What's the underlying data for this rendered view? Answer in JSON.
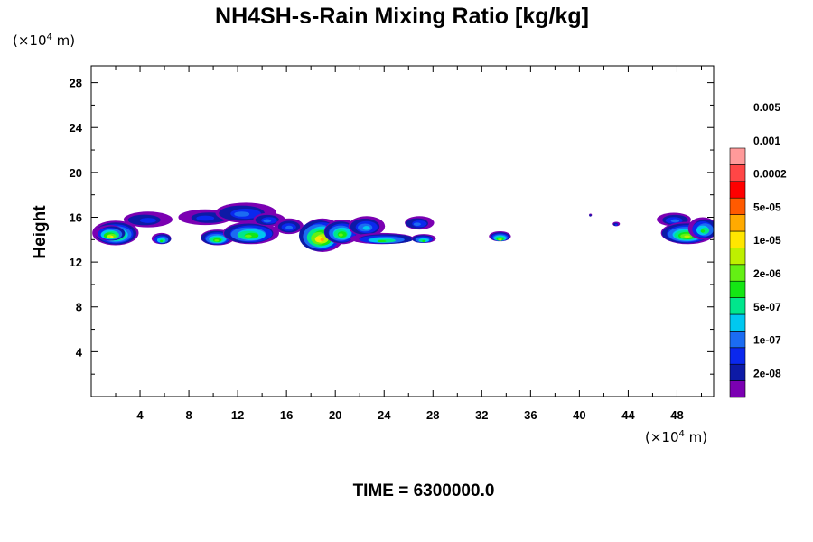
{
  "chart_data": {
    "type": "heatmap",
    "title": "NH4SH-s-Rain Mixing Ratio [kg/kg]",
    "xlabel": "",
    "ylabel": "Height",
    "x_unit_prefix": "(×10",
    "x_unit_exp": "4",
    "x_unit_suffix": " m)",
    "y_unit_prefix": "(×10",
    "y_unit_exp": "4",
    "y_unit_suffix": " m)",
    "xlim": [
      0,
      51
    ],
    "ylim": [
      0,
      29.5
    ],
    "x_ticks": [
      4,
      8,
      12,
      16,
      20,
      24,
      28,
      32,
      36,
      40,
      44,
      48
    ],
    "y_ticks": [
      4,
      8,
      12,
      16,
      20,
      24,
      28
    ],
    "x_minor_step": 2,
    "y_minor_step": 2,
    "grid": false,
    "colorbar": {
      "levels": [
        "2e-08",
        "1e-07",
        "5e-07",
        "2e-06",
        "1e-05",
        "5e-05",
        "0.0002",
        "0.001",
        "0.005"
      ],
      "colors": [
        "#7b00b2",
        "#0d1aa6",
        "#0a28ee",
        "#1b6cf2",
        "#00c8f0",
        "#00e68c",
        "#14e614",
        "#64f014",
        "#bef000",
        "#ffe600",
        "#ffaa00",
        "#ff5a00",
        "#ff0000",
        "#ff4646",
        "#ff9a9a"
      ]
    },
    "fields": [
      {
        "x": 2.0,
        "y": 14.6,
        "rx": 1.9,
        "ry": 1.1,
        "peak": 8
      },
      {
        "x": 1.6,
        "y": 14.6,
        "rx": 1.2,
        "ry": 0.7,
        "peak": 9
      },
      {
        "x": 4.5,
        "y": 15.8,
        "rx": 2.0,
        "ry": 0.7,
        "peak": 2
      },
      {
        "x": 5.8,
        "y": 14.1,
        "rx": 0.8,
        "ry": 0.5,
        "peak": 6
      },
      {
        "x": 9.5,
        "y": 16.0,
        "rx": 2.2,
        "ry": 0.7,
        "peak": 2
      },
      {
        "x": 10.3,
        "y": 14.2,
        "rx": 1.4,
        "ry": 0.7,
        "peak": 7
      },
      {
        "x": 13.0,
        "y": 14.6,
        "rx": 2.3,
        "ry": 1.0,
        "peak": 7
      },
      {
        "x": 12.5,
        "y": 16.4,
        "rx": 2.5,
        "ry": 0.9,
        "peak": 3
      },
      {
        "x": 14.5,
        "y": 15.8,
        "rx": 1.3,
        "ry": 0.6,
        "peak": 3
      },
      {
        "x": 16.2,
        "y": 15.2,
        "rx": 1.2,
        "ry": 0.7,
        "peak": 3
      },
      {
        "x": 18.8,
        "y": 14.4,
        "rx": 1.8,
        "ry": 1.5,
        "peak": 10
      },
      {
        "x": 20.5,
        "y": 14.7,
        "rx": 1.5,
        "ry": 1.1,
        "peak": 7
      },
      {
        "x": 22.5,
        "y": 15.2,
        "rx": 1.5,
        "ry": 0.9,
        "peak": 4
      },
      {
        "x": 24.0,
        "y": 14.1,
        "rx": 2.6,
        "ry": 0.5,
        "peak": 6
      },
      {
        "x": 26.8,
        "y": 15.5,
        "rx": 1.2,
        "ry": 0.6,
        "peak": 3
      },
      {
        "x": 27.2,
        "y": 14.1,
        "rx": 1.0,
        "ry": 0.4,
        "peak": 6
      },
      {
        "x": 33.5,
        "y": 14.3,
        "rx": 0.9,
        "ry": 0.45,
        "peak": 8
      },
      {
        "x": 40.9,
        "y": 16.2,
        "rx": 0.12,
        "ry": 0.12,
        "peak": 1
      },
      {
        "x": 43.0,
        "y": 15.4,
        "rx": 0.3,
        "ry": 0.2,
        "peak": 2
      },
      {
        "x": 47.8,
        "y": 15.8,
        "rx": 1.4,
        "ry": 0.6,
        "peak": 3
      },
      {
        "x": 48.8,
        "y": 14.6,
        "rx": 2.2,
        "ry": 1.0,
        "peak": 8
      },
      {
        "x": 50.2,
        "y": 15.0,
        "rx": 1.2,
        "ry": 1.0,
        "peak": 6
      }
    ]
  },
  "footer": {
    "time_label": "TIME = 6300000.0"
  }
}
